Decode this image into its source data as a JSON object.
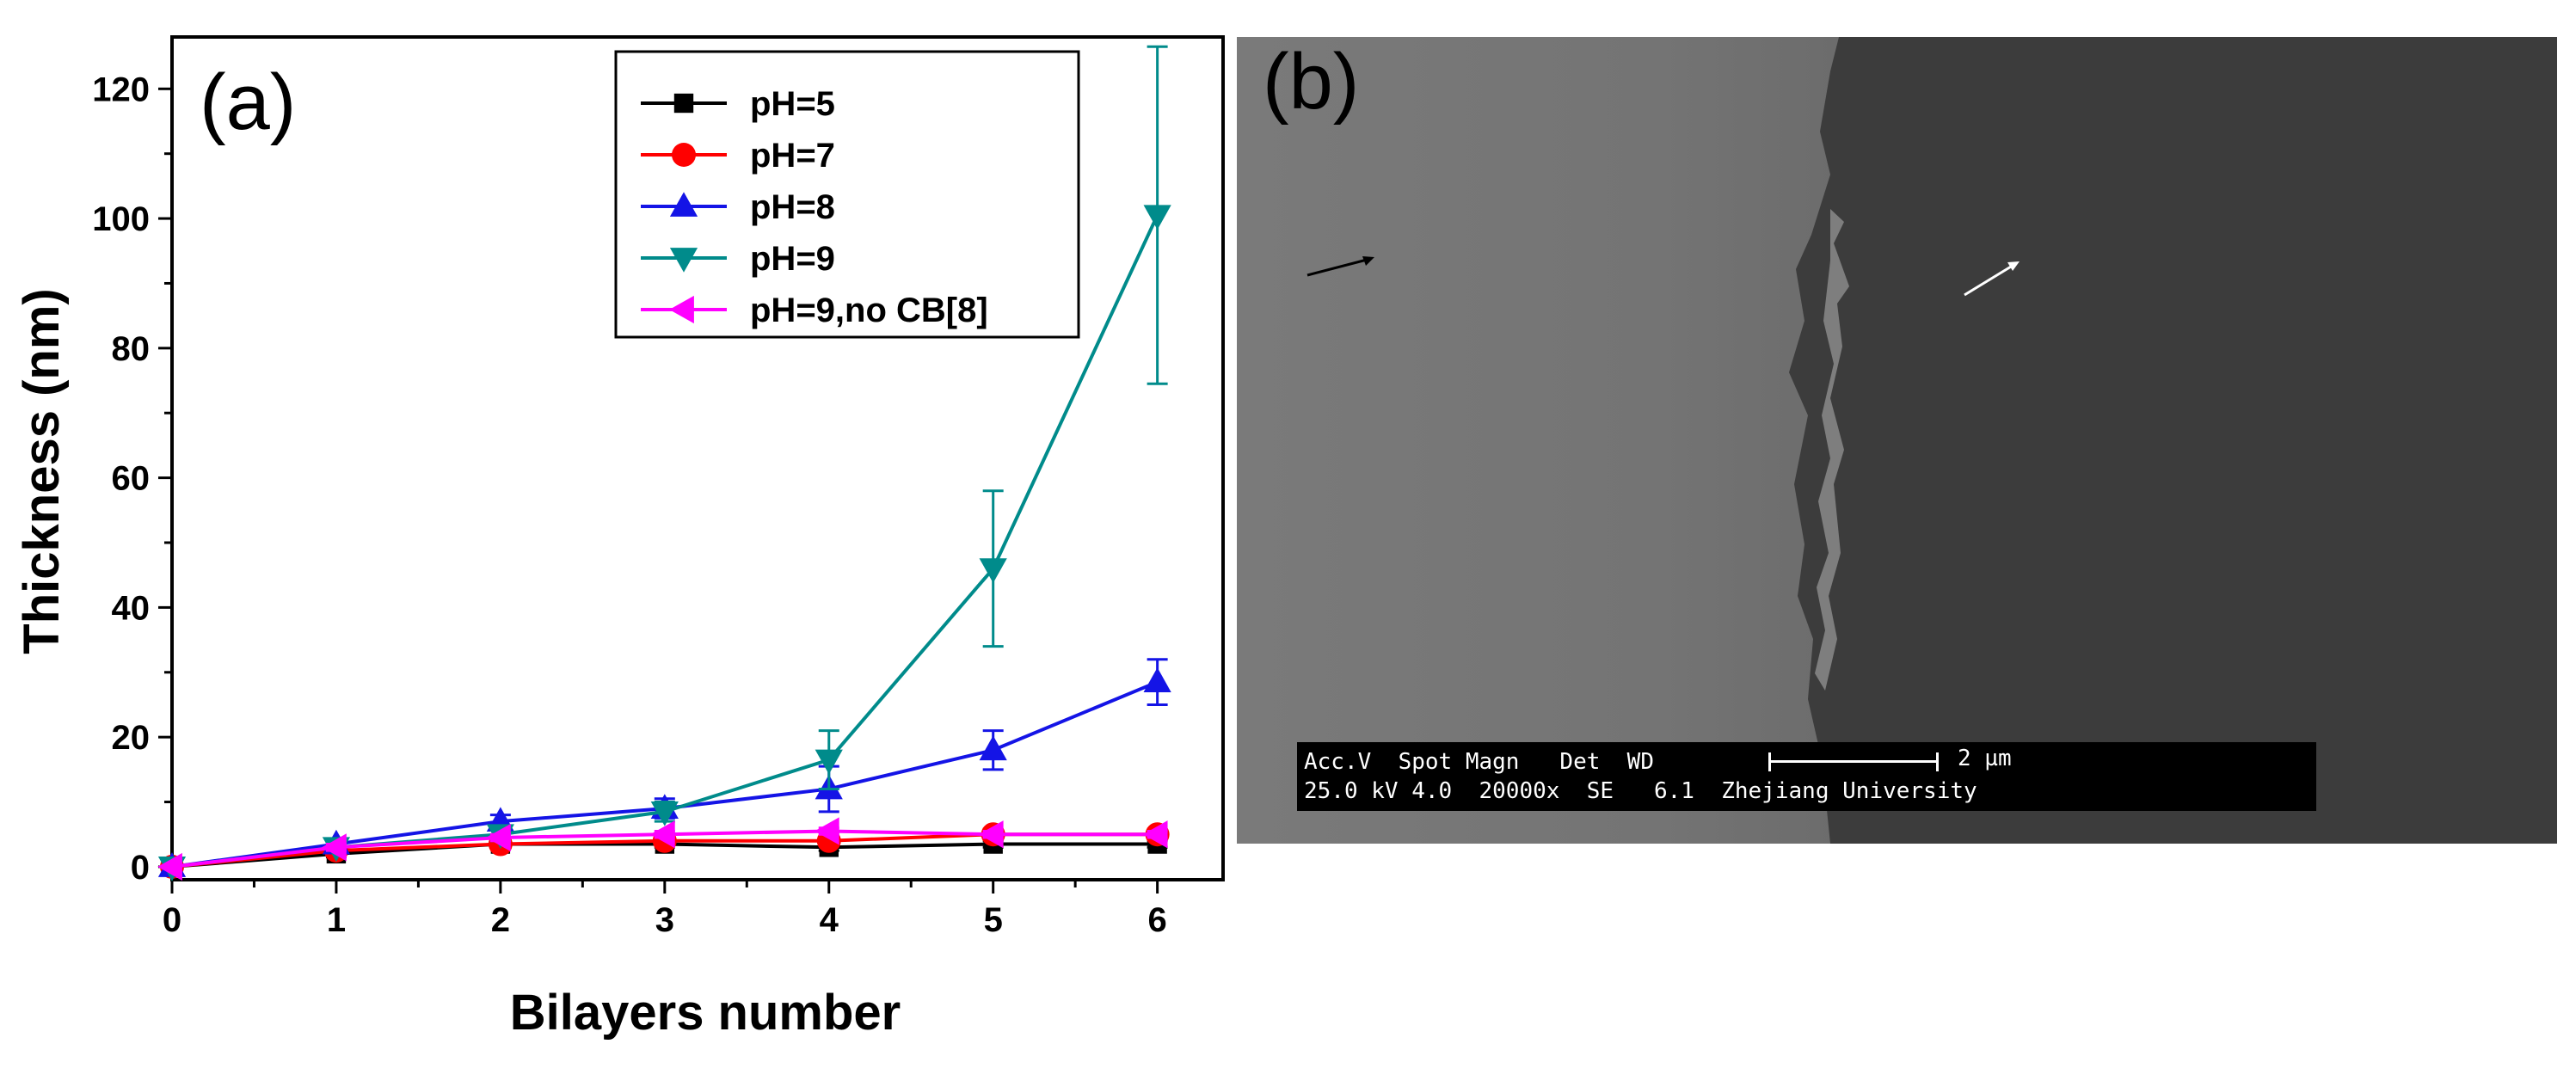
{
  "chart_data": {
    "type": "line",
    "panel_label": "(a)",
    "xlabel": "Bilayers number",
    "ylabel": "Thickness (nm)",
    "xlim": [
      0,
      6.4
    ],
    "ylim": [
      -2,
      128
    ],
    "x_ticks": [
      "0",
      "1",
      "2",
      "3",
      "4",
      "5",
      "6"
    ],
    "y_ticks": [
      "0",
      "20",
      "40",
      "60",
      "80",
      "100",
      "120"
    ],
    "x": [
      0,
      1,
      2,
      3,
      4,
      5,
      6
    ],
    "legend_position": "top-right",
    "series": [
      {
        "name": "pH=5",
        "color": "#000000",
        "marker": "square",
        "values": [
          0,
          2,
          3.5,
          3.5,
          3,
          3.5,
          3.5
        ],
        "errors": [
          0,
          0.5,
          0.5,
          0.5,
          0.5,
          0.5,
          0.5
        ]
      },
      {
        "name": "pH=7",
        "color": "#ff0000",
        "marker": "circle",
        "values": [
          0,
          2.5,
          3.5,
          4,
          4,
          5,
          5
        ],
        "errors": [
          0,
          0.5,
          0.5,
          0.5,
          0.5,
          0.8,
          0.8
        ]
      },
      {
        "name": "pH=8",
        "color": "#1414e6",
        "marker": "triangle-up",
        "values": [
          0,
          3.5,
          7,
          9,
          12,
          18,
          28.5
        ],
        "errors": [
          0,
          0.5,
          1,
          1.5,
          3.5,
          3,
          3.5
        ]
      },
      {
        "name": "pH=9",
        "color": "#008b8b",
        "marker": "triangle-down",
        "values": [
          0,
          3,
          5,
          8.5,
          16.5,
          46,
          100.5
        ],
        "errors": [
          0,
          0.5,
          1,
          1.5,
          4.5,
          12,
          26
        ]
      },
      {
        "name": "pH=9,no CB[8]",
        "color": "#ff00ff",
        "marker": "triangle-left",
        "values": [
          0,
          3,
          4.5,
          5,
          5.5,
          5,
          5
        ],
        "errors": [
          0,
          0.5,
          0.5,
          0.5,
          0.5,
          0.5,
          0.5
        ]
      }
    ]
  },
  "sem_image": {
    "panel_label": "(b)",
    "info_row1": "Acc.V  Spot Magn   Det  WD",
    "info_row2": "25.0 kV 4.0  20000x  SE   6.1  Zhejiang University",
    "scale_text": "2 µm"
  }
}
